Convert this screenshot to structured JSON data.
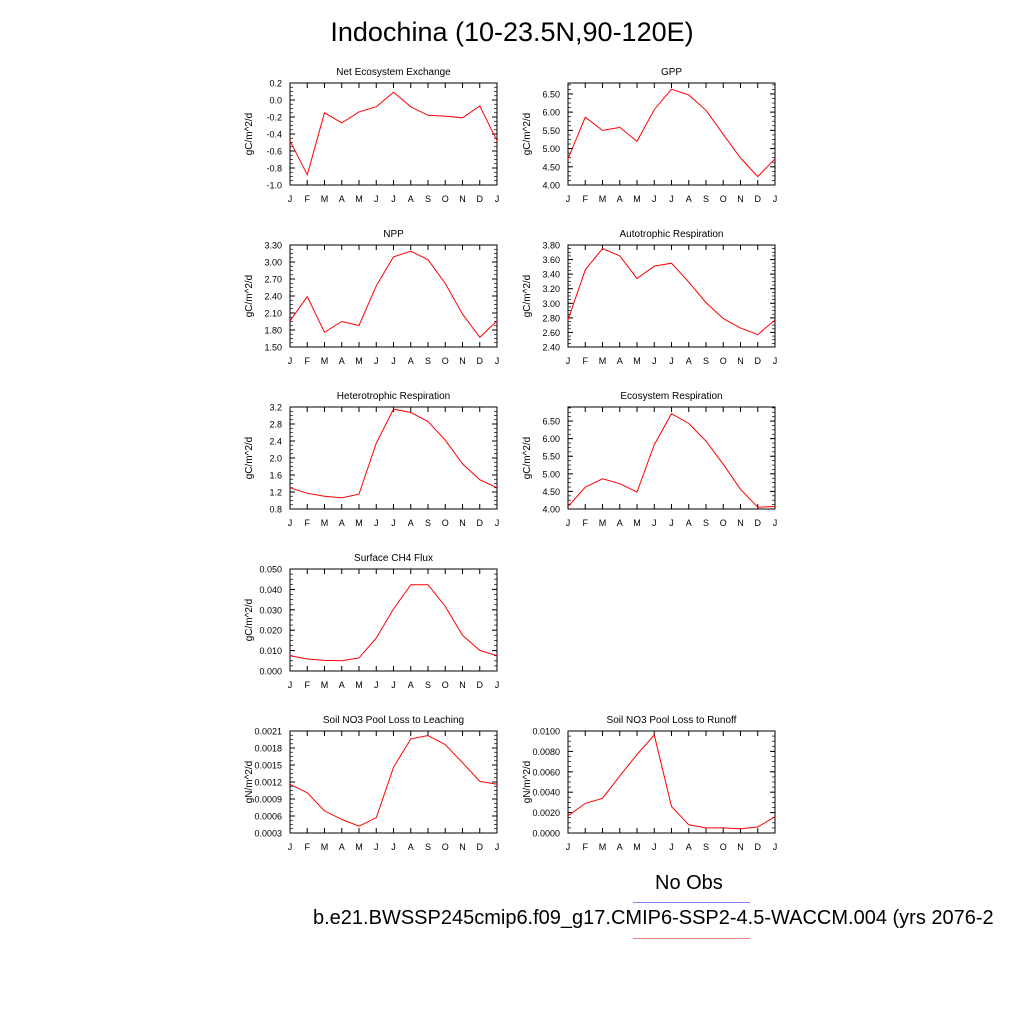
{
  "page": {
    "title": "Indochina (10-23.5N,90-120E)"
  },
  "legend": {
    "obs_label": "No Obs",
    "case_label": "b.e21.BWSSP245cmip6.f09_g17.CMIP6-SSP2-4.5-WACCM.004 (yrs 2076-2",
    "obs_color": "#8080f0",
    "case_color": "#f08080"
  },
  "colors": {
    "series": "#ff0000",
    "axis": "#000000"
  },
  "chart_data": [
    {
      "id": "nee",
      "type": "line",
      "title": "Net Ecosystem Exchange",
      "ylabel": "gC/m^2/d",
      "categories": [
        "J",
        "F",
        "M",
        "A",
        "M",
        "J",
        "J",
        "A",
        "S",
        "O",
        "N",
        "D",
        "J"
      ],
      "ylim": [
        -1.0,
        0.2
      ],
      "yticks": [
        "0.2",
        "0.0",
        "-0.2",
        "-0.4",
        "-0.6",
        "-0.8",
        "-1.0"
      ],
      "yticks_values": [
        0.2,
        0.0,
        -0.2,
        -0.4,
        -0.6,
        -0.8,
        -1.0
      ],
      "values": [
        -0.48,
        -0.88,
        -0.15,
        -0.27,
        -0.14,
        -0.08,
        0.09,
        -0.08,
        -0.18,
        -0.19,
        -0.21,
        -0.07,
        -0.48
      ]
    },
    {
      "id": "gpp",
      "type": "line",
      "title": "GPP",
      "ylabel": "gC/m^2/d",
      "categories": [
        "J",
        "F",
        "M",
        "A",
        "M",
        "J",
        "J",
        "A",
        "S",
        "O",
        "N",
        "D",
        "J"
      ],
      "ylim": [
        4.0,
        6.8
      ],
      "yticks": [
        "6.50",
        "6.00",
        "5.50",
        "5.00",
        "4.50",
        "4.00"
      ],
      "yticks_values": [
        6.5,
        6.0,
        5.5,
        5.0,
        4.5,
        4.0
      ],
      "values": [
        4.72,
        5.86,
        5.5,
        5.58,
        5.2,
        6.07,
        6.63,
        6.47,
        6.05,
        5.39,
        4.74,
        4.23,
        4.72
      ]
    },
    {
      "id": "npp",
      "type": "line",
      "title": "NPP",
      "ylabel": "gC/m^2/d",
      "categories": [
        "J",
        "F",
        "M",
        "A",
        "M",
        "J",
        "J",
        "A",
        "S",
        "O",
        "N",
        "D",
        "J"
      ],
      "ylim": [
        1.5,
        3.3
      ],
      "yticks": [
        "3.30",
        "3.00",
        "2.70",
        "2.40",
        "2.10",
        "1.80",
        "1.50"
      ],
      "yticks_values": [
        3.3,
        3.0,
        2.7,
        2.4,
        2.1,
        1.8,
        1.5
      ],
      "values": [
        1.96,
        2.39,
        1.76,
        1.95,
        1.88,
        2.58,
        3.09,
        3.19,
        3.04,
        2.62,
        2.08,
        1.67,
        1.96
      ]
    },
    {
      "id": "ar",
      "type": "line",
      "title": "Autotrophic Respiration",
      "ylabel": "gC/m^2/d",
      "categories": [
        "J",
        "F",
        "M",
        "A",
        "M",
        "J",
        "J",
        "A",
        "S",
        "O",
        "N",
        "D",
        "J"
      ],
      "ylim": [
        2.4,
        3.8
      ],
      "yticks": [
        "3.80",
        "3.60",
        "3.40",
        "3.20",
        "3.00",
        "2.80",
        "2.60",
        "2.40"
      ],
      "yticks_values": [
        3.8,
        3.6,
        3.4,
        3.2,
        3.0,
        2.8,
        2.6,
        2.4
      ],
      "values": [
        2.77,
        3.46,
        3.75,
        3.65,
        3.34,
        3.51,
        3.55,
        3.29,
        3.01,
        2.79,
        2.66,
        2.57,
        2.77
      ]
    },
    {
      "id": "hr",
      "type": "line",
      "title": "Heterotrophic Respiration",
      "ylabel": "gC/m^2/d",
      "categories": [
        "J",
        "F",
        "M",
        "A",
        "M",
        "J",
        "J",
        "A",
        "S",
        "O",
        "N",
        "D",
        "J"
      ],
      "ylim": [
        0.8,
        3.2
      ],
      "yticks": [
        "3.2",
        "2.8",
        "2.4",
        "2.0",
        "1.6",
        "1.2",
        "0.8"
      ],
      "yticks_values": [
        3.2,
        2.8,
        2.4,
        2.0,
        1.6,
        1.2,
        0.8
      ],
      "values": [
        1.3,
        1.17,
        1.1,
        1.06,
        1.15,
        2.35,
        3.15,
        3.07,
        2.86,
        2.42,
        1.86,
        1.49,
        1.3
      ]
    },
    {
      "id": "er",
      "type": "line",
      "title": "Ecosystem Respiration",
      "ylabel": "gC/m^2/d",
      "categories": [
        "J",
        "F",
        "M",
        "A",
        "M",
        "J",
        "J",
        "A",
        "S",
        "O",
        "N",
        "D",
        "J"
      ],
      "ylim": [
        4.0,
        6.9
      ],
      "yticks": [
        "6.50",
        "6.00",
        "5.50",
        "5.00",
        "4.50",
        "4.00"
      ],
      "yticks_values": [
        6.5,
        6.0,
        5.5,
        5.0,
        4.5,
        4.0
      ],
      "values": [
        4.07,
        4.62,
        4.86,
        4.72,
        4.48,
        5.83,
        6.71,
        6.43,
        5.93,
        5.27,
        4.56,
        4.05,
        4.07
      ]
    },
    {
      "id": "ch4",
      "type": "line",
      "title": "Surface CH4 Flux",
      "ylabel": "gC/m^2/d",
      "categories": [
        "J",
        "F",
        "M",
        "A",
        "M",
        "J",
        "J",
        "A",
        "S",
        "O",
        "N",
        "D",
        "J"
      ],
      "ylim": [
        0.0,
        0.05
      ],
      "yticks": [
        "0.050",
        "0.040",
        "0.030",
        "0.020",
        "0.010",
        "0.000"
      ],
      "yticks_values": [
        0.05,
        0.04,
        0.03,
        0.02,
        0.01,
        0.0
      ],
      "values": [
        0.0075,
        0.0059,
        0.0052,
        0.005,
        0.0064,
        0.0162,
        0.0304,
        0.0423,
        0.0423,
        0.0316,
        0.0175,
        0.0101,
        0.0075
      ]
    },
    {
      "id": "no3leach",
      "type": "line",
      "title": "Soil NO3 Pool Loss to Leaching",
      "ylabel": "gN/m^2/d",
      "categories": [
        "J",
        "F",
        "M",
        "A",
        "M",
        "J",
        "J",
        "A",
        "S",
        "O",
        "N",
        "D",
        "J"
      ],
      "ylim": [
        0.0003,
        0.0021
      ],
      "yticks": [
        "0.0021",
        "0.0018",
        "0.0015",
        "0.0012",
        "0.0009",
        "0.0006",
        "0.0003"
      ],
      "yticks_values": [
        0.0021,
        0.0018,
        0.0015,
        0.0012,
        0.0009,
        0.0006,
        0.0003
      ],
      "values": [
        0.00116,
        0.00101,
        0.00069,
        0.00054,
        0.00042,
        0.00057,
        0.00146,
        0.00196,
        0.00202,
        0.00186,
        0.00154,
        0.00121,
        0.00116
      ]
    },
    {
      "id": "no3runoff",
      "type": "line",
      "title": "Soil NO3 Pool Loss to Runoff",
      "ylabel": "gN/m^2/d",
      "categories": [
        "J",
        "F",
        "M",
        "A",
        "M",
        "J",
        "J",
        "A",
        "S",
        "O",
        "N",
        "D",
        "J"
      ],
      "ylim": [
        0.0,
        0.01
      ],
      "yticks": [
        "0.0100",
        "0.0080",
        "0.0060",
        "0.0040",
        "0.0020",
        "0.0000"
      ],
      "yticks_values": [
        0.01,
        0.008,
        0.006,
        0.004,
        0.002,
        0.0
      ],
      "values": [
        0.0017,
        0.0029,
        0.0034,
        0.0056,
        0.0077,
        0.0096,
        0.0026,
        0.0008,
        0.0005,
        0.0005,
        0.0004,
        0.0006,
        0.0016
      ]
    }
  ]
}
